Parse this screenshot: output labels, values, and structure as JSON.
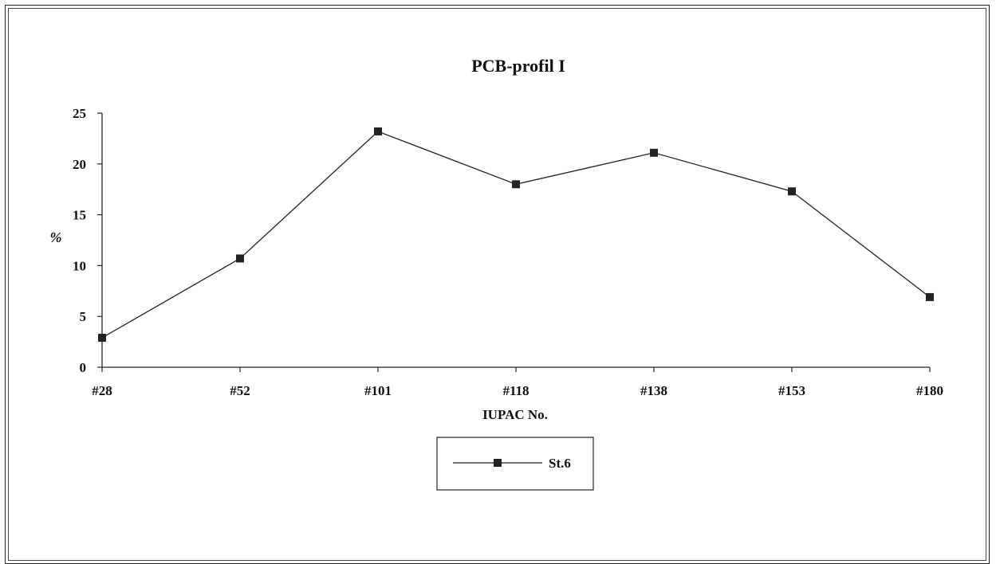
{
  "chart_data": {
    "type": "line",
    "title": "PCB-profil I",
    "xlabel": "IUPAC No.",
    "ylabel": "%",
    "categories": [
      "#28",
      "#52",
      "#101",
      "#118",
      "#138",
      "#153",
      "#180"
    ],
    "series": [
      {
        "name": "St.6",
        "values": [
          2.9,
          10.7,
          23.2,
          18.0,
          21.1,
          17.3,
          6.9
        ]
      }
    ],
    "ylim": [
      0,
      25
    ],
    "yticks": [
      0,
      5,
      10,
      15,
      20,
      25
    ],
    "grid": false,
    "legend_position": "bottom-center",
    "marker": "square",
    "colors": {
      "line": "#222222",
      "marker": "#222222"
    }
  }
}
